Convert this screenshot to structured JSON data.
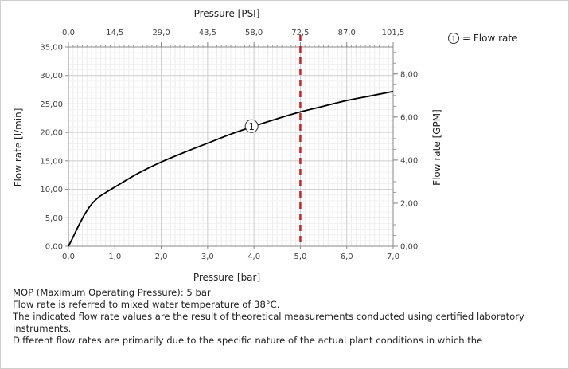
{
  "chart_data": {
    "type": "line",
    "x_axis": {
      "label": "Pressure [bar]",
      "min": 0,
      "max": 7,
      "ticks": [
        "0,0",
        "1,0",
        "2,0",
        "3,0",
        "4,0",
        "5,0",
        "6,0",
        "7,0"
      ]
    },
    "x2_axis": {
      "label": "Pressure [PSI]",
      "min": 0,
      "max": 101.5,
      "ticks": [
        "0,0",
        "14,5",
        "29,0",
        "43,5",
        "58,0",
        "72,5",
        "87,0",
        "101,5"
      ]
    },
    "y_axis": {
      "label": "Flow rate [l/min]",
      "min": 0,
      "max": 35,
      "ticks": [
        "0,00",
        "5,00",
        "10,00",
        "15,00",
        "20,00",
        "25,00",
        "30,00",
        "35,00"
      ]
    },
    "y2_axis": {
      "label": "Flow rate [GPM]",
      "min": 0,
      "max": 9.25,
      "tick_values": [
        0,
        2,
        4,
        6,
        8
      ],
      "ticks": [
        "0,00",
        "2,00",
        "4,00",
        "6,00",
        "8,00"
      ]
    },
    "series": [
      {
        "marker": "1",
        "color": "#000000",
        "x": [
          0.0,
          0.1,
          0.2,
          0.35,
          0.5,
          0.65,
          0.8,
          1.0,
          1.5,
          2.0,
          2.5,
          3.0,
          3.5,
          4.0,
          4.5,
          5.0,
          5.5,
          6.0,
          6.5,
          7.0
        ],
        "y": [
          0.0,
          1.6,
          3.3,
          5.6,
          7.4,
          8.6,
          9.4,
          10.4,
          12.8,
          14.8,
          16.5,
          18.1,
          19.7,
          21.1,
          22.4,
          23.6,
          24.6,
          25.6,
          26.4,
          27.2
        ],
        "marker_at_x": 4.0
      }
    ],
    "reference_line": {
      "x": 5.0,
      "color": "#cc2222",
      "style": "dashed"
    },
    "legend": {
      "symbol": "1",
      "text": "= Flow rate",
      "placement": "top-right"
    },
    "grid": true
  },
  "notes": [
    "MOP (Maximum Operating Pressure): 5 bar",
    "Flow rate is referred to mixed water temperature of 38°C.",
    "The indicated flow rate values are the result of theoretical measurements conducted using certified laboratory instruments.",
    "Different flow rates are primarily due to the specific nature of the actual plant conditions in which the"
  ]
}
